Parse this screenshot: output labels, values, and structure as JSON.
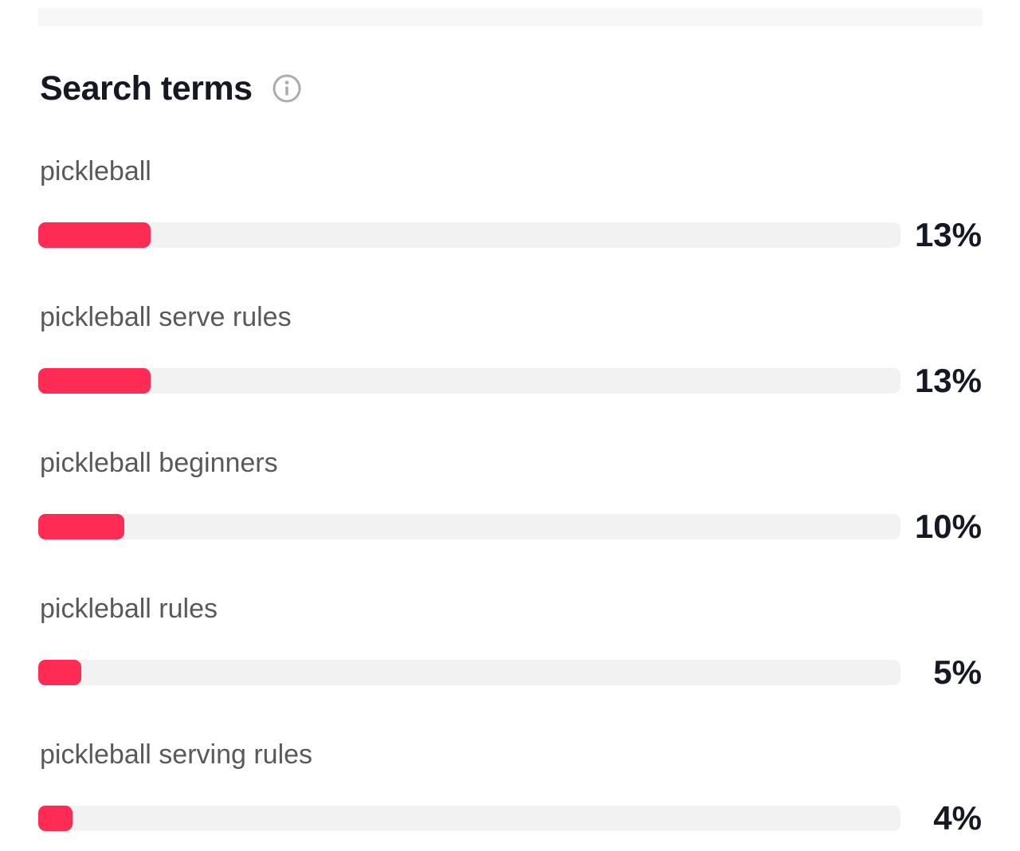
{
  "section": {
    "title": "Search terms"
  },
  "colors": {
    "accent_bar": "#FE2C55",
    "bar_track": "#F2F2F2",
    "label_text": "#595959",
    "value_text": "#161823",
    "top_strip": "#F7F7F7"
  },
  "chart_data": {
    "type": "bar",
    "orientation": "horizontal",
    "title": "Search terms",
    "categories": [
      "pickleball",
      "pickleball serve rules",
      "pickleball beginners",
      "pickleball rules",
      "pickleball serving rules"
    ],
    "values": [
      13,
      13,
      10,
      5,
      4
    ],
    "display_values": [
      "13%",
      "13%",
      "10%",
      "5%",
      "4%"
    ],
    "value_format": "percent",
    "xlim": [
      0,
      100
    ],
    "grid": false,
    "legend": false
  }
}
